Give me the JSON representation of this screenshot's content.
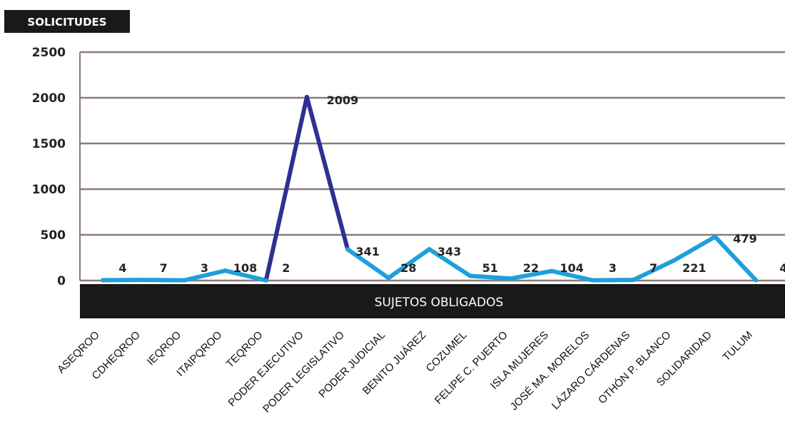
{
  "chart_data": {
    "type": "line",
    "title": "SOLICITUDES",
    "xlabel": "SUJETOS OBLIGADOS",
    "ylabel": "",
    "ylim": [
      0,
      2500
    ],
    "yticks": [
      "2500",
      "2000",
      "1500",
      "1000",
      "500",
      "0"
    ],
    "grid": true,
    "categories": [
      "ASEQROO",
      "CDHEQROO",
      "IEQROO",
      "ITAIPQROO",
      "TEQROO",
      "PODER EJECUTIVO",
      "PODER LEGISLATIVO",
      "PODER JUDICIAL",
      "BENITO JUÁREZ",
      "COZUMEL",
      "FELIPE C. PUERTO",
      "ISLA MUJERES",
      "JOSÉ MA. MORELOS",
      "LÁZARO CÁRDENAS",
      "OTHÓN P. BLANCO",
      "SOLIDARIDAD",
      "TULUM"
    ],
    "values": [
      4,
      7,
      3,
      108,
      2,
      2009,
      341,
      28,
      343,
      51,
      22,
      104,
      3,
      7,
      221,
      479,
      4
    ],
    "data_labels": [
      "4",
      "7",
      "3",
      "108",
      "2",
      "2009",
      "341",
      "28",
      "343",
      "51",
      "22",
      "104",
      "3",
      "7",
      "221",
      "479",
      "4"
    ],
    "highlight_index": 5,
    "colors": {
      "line": "#1ea0dc",
      "highlight": "#2e3192",
      "grid": "#8b7a78",
      "banner": "#1a1818"
    }
  }
}
